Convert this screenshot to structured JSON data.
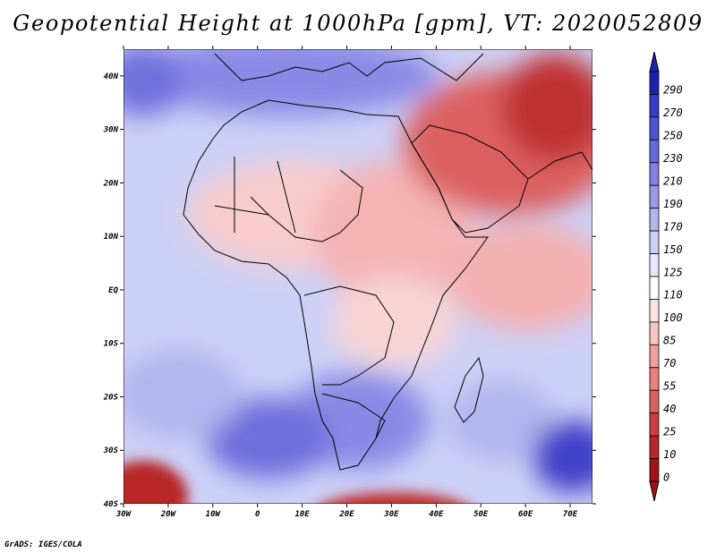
{
  "title": "Geopotential Height at 1000hPa [gpm], VT: 2020052809",
  "footer": "GrADS: IGES/COLA",
  "map": {
    "lon_ticks": [
      "30W",
      "20W",
      "10W",
      "0",
      "10E",
      "20E",
      "30E",
      "40E",
      "50E",
      "60E",
      "70E"
    ],
    "lat_ticks": [
      "40N",
      "30N",
      "20N",
      "10N",
      "EQ",
      "10S",
      "20S",
      "30S",
      "40S"
    ],
    "extent": {
      "lon_min": -30,
      "lon_max": 75,
      "lat_min": -40,
      "lat_max": 45
    }
  },
  "colorbar": {
    "labels": [
      "290",
      "270",
      "250",
      "230",
      "210",
      "190",
      "170",
      "150",
      "125",
      "110",
      "100",
      "85",
      "70",
      "55",
      "40",
      "25",
      "10",
      "0"
    ],
    "colors": [
      "#2020b0",
      "#3a3ac8",
      "#5050d4",
      "#6868dc",
      "#8080e2",
      "#9a9ae8",
      "#b4b4ef",
      "#cdd0f6",
      "#e6e8fc",
      "#ffffff",
      "#fde4e4",
      "#f8c4c4",
      "#f0a0a0",
      "#e88080",
      "#dc6060",
      "#cc4040",
      "#b82626",
      "#a01414"
    ]
  }
}
